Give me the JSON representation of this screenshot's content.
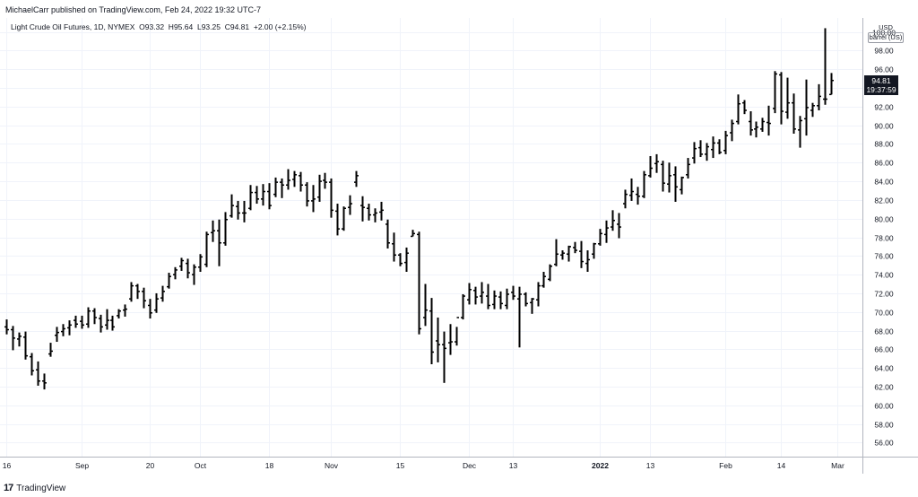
{
  "header": {
    "published": "MichaelCarr published on TradingView.com, Feb 24, 2022 19:32 UTC-7"
  },
  "legend": {
    "symbol": "Light Crude Oil Futures, 1D, NYMEX",
    "o_label": "O",
    "o_value": "93.32",
    "h_label": "H",
    "h_value": "95.64",
    "l_label": "L",
    "l_value": "93.25",
    "c_label": "C",
    "c_value": "94.81",
    "change": "+2.00 (+2.15%)"
  },
  "price_axis": {
    "currency": "USD",
    "unit": "barrel (US)"
  },
  "last_price": {
    "value": "94.81",
    "countdown": "19:37:59",
    "price": 94.81
  },
  "footer": {
    "brand": "TradingView",
    "logo_glyph": "17"
  },
  "chart_data": {
    "type": "ohlc",
    "ylim": [
      54.5,
      101.5
    ],
    "yticks": [
      56,
      58,
      60,
      62,
      64,
      66,
      68,
      70,
      72,
      74,
      76,
      78,
      80,
      82,
      84,
      86,
      88,
      90,
      92,
      94,
      96,
      98,
      100
    ],
    "ytick_labels": [
      "56.00",
      "58.00",
      "60.00",
      "62.00",
      "64.00",
      "66.00",
      "68.00",
      "70.00",
      "72.00",
      "74.00",
      "76.00",
      "78.00",
      "80.00",
      "82.00",
      "84.00",
      "86.00",
      "88.00",
      "90.00",
      "92.00",
      "94.00",
      "96.00",
      "98.00",
      "100.00"
    ],
    "xticks": [
      {
        "label": "16",
        "index": 0
      },
      {
        "label": "Sep",
        "index": 12
      },
      {
        "label": "20",
        "index": 23
      },
      {
        "label": "Oct",
        "index": 31
      },
      {
        "label": "18",
        "index": 42
      },
      {
        "label": "Nov",
        "index": 52
      },
      {
        "label": "15",
        "index": 63
      },
      {
        "label": "Dec",
        "index": 74
      },
      {
        "label": "13",
        "index": 81
      },
      {
        "label": "2022",
        "index": 95
      },
      {
        "label": "13",
        "index": 103
      },
      {
        "label": "Feb",
        "index": 115
      },
      {
        "label": "14",
        "index": 124
      },
      {
        "label": "Mar",
        "index": 133
      }
    ],
    "x_domain": [
      -1,
      137
    ],
    "bars": [
      [
        68.4,
        69.2,
        67.6,
        68.1
      ],
      [
        68.1,
        68.5,
        65.9,
        67.2
      ],
      [
        67.1,
        67.8,
        66.3,
        67.4
      ],
      [
        67.3,
        67.9,
        64.9,
        65.3
      ],
      [
        65.2,
        65.6,
        63.2,
        63.7
      ],
      [
        63.8,
        64.7,
        62.1,
        62.6
      ],
      [
        62.6,
        63.4,
        61.7,
        62.4
      ],
      [
        65.5,
        66.7,
        65.2,
        65.8
      ],
      [
        67.5,
        68.4,
        66.8,
        67.8
      ],
      [
        67.9,
        68.7,
        67.4,
        68.2
      ],
      [
        68.3,
        69.1,
        67.5,
        68.6
      ],
      [
        69.1,
        69.6,
        68.3,
        68.7
      ],
      [
        69.0,
        69.6,
        68.2,
        68.6
      ],
      [
        68.7,
        70.5,
        68.3,
        70.1
      ],
      [
        70.1,
        70.4,
        68.7,
        69.4
      ],
      [
        69.3,
        69.7,
        67.8,
        68.4
      ],
      [
        68.6,
        70.3,
        68.1,
        69.1
      ],
      [
        69.1,
        69.6,
        68.0,
        68.4
      ],
      [
        69.6,
        70.3,
        69.3,
        70.1
      ],
      [
        70.2,
        70.8,
        69.5,
        70.3
      ],
      [
        71.4,
        73.2,
        71.1,
        72.8
      ],
      [
        72.8,
        73.0,
        71.4,
        72.2
      ],
      [
        72.2,
        72.6,
        70.4,
        71.2
      ],
      [
        70.7,
        71.4,
        69.3,
        69.9
      ],
      [
        70.2,
        72.0,
        69.9,
        71.4
      ],
      [
        71.5,
        72.8,
        71.1,
        72.2
      ],
      [
        72.7,
        74.2,
        72.5,
        73.8
      ],
      [
        74.0,
        74.8,
        73.5,
        74.5
      ],
      [
        74.9,
        75.8,
        74.4,
        75.5
      ],
      [
        75.2,
        75.7,
        73.6,
        74.2
      ],
      [
        74.0,
        75.1,
        72.9,
        74.8
      ],
      [
        74.8,
        76.2,
        74.3,
        75.9
      ],
      [
        75.1,
        78.6,
        74.8,
        78.3
      ],
      [
        78.5,
        79.8,
        77.5,
        78.7
      ],
      [
        78.7,
        79.9,
        74.9,
        77.4
      ],
      [
        77.4,
        80.7,
        77.1,
        79.9
      ],
      [
        80.3,
        82.6,
        80.1,
        81.4
      ],
      [
        81.3,
        81.9,
        79.9,
        80.6
      ],
      [
        80.6,
        81.9,
        79.6,
        80.6
      ],
      [
        81.1,
        83.6,
        80.9,
        82.8
      ],
      [
        82.8,
        83.5,
        81.6,
        82.1
      ],
      [
        82.1,
        83.7,
        81.4,
        82.9
      ],
      [
        82.9,
        83.8,
        81.0,
        81.4
      ],
      [
        82.6,
        84.4,
        82.3,
        83.9
      ],
      [
        83.9,
        84.3,
        82.2,
        83.6
      ],
      [
        83.6,
        85.3,
        83.1,
        84.1
      ],
      [
        84.2,
        85.1,
        83.4,
        84.7
      ],
      [
        84.6,
        85.0,
        82.9,
        83.6
      ],
      [
        83.6,
        83.9,
        81.3,
        81.9
      ],
      [
        81.9,
        83.6,
        80.7,
        82.1
      ],
      [
        82.3,
        84.7,
        81.8,
        84.0
      ],
      [
        84.1,
        84.9,
        83.2,
        83.9
      ],
      [
        83.9,
        84.3,
        80.1,
        80.9
      ],
      [
        80.8,
        81.6,
        78.2,
        78.9
      ],
      [
        78.9,
        81.3,
        78.7,
        81.1
      ],
      [
        81.2,
        82.5,
        80.4,
        81.6
      ],
      [
        83.9,
        85.1,
        83.4,
        84.6
      ],
      [
        81.4,
        82.4,
        79.7,
        81.2
      ],
      [
        81.1,
        81.6,
        79.8,
        80.4
      ],
      [
        80.4,
        81.1,
        79.6,
        80.6
      ],
      [
        80.7,
        81.8,
        79.8,
        80.9
      ],
      [
        79.4,
        79.9,
        76.8,
        77.4
      ],
      [
        77.3,
        78.5,
        75.4,
        76.1
      ],
      [
        76.1,
        76.3,
        74.9,
        75.2
      ],
      [
        75.3,
        76.9,
        74.3,
        76.3
      ],
      [
        78.1,
        78.8,
        78.1,
        78.4
      ],
      [
        78.3,
        78.6,
        67.6,
        68.2
      ],
      [
        69.4,
        73.0,
        68.5,
        70.2
      ],
      [
        70.1,
        71.5,
        64.4,
        65.7
      ],
      [
        66.9,
        69.4,
        64.6,
        66.5
      ],
      [
        66.5,
        67.9,
        62.4,
        66.1
      ],
      [
        66.7,
        68.7,
        65.4,
        66.8
      ],
      [
        66.8,
        68.4,
        66.4,
        69.4
      ],
      [
        69.4,
        71.9,
        69.2,
        71.7
      ],
      [
        71.3,
        73.1,
        70.8,
        72.4
      ],
      [
        72.3,
        72.7,
        70.8,
        71.6
      ],
      [
        71.7,
        73.2,
        70.9,
        72.1
      ],
      [
        71.7,
        73.0,
        70.3,
        70.7
      ],
      [
        70.8,
        72.3,
        70.3,
        71.7
      ],
      [
        71.6,
        72.2,
        70.3,
        70.9
      ],
      [
        70.7,
        72.5,
        70.3,
        71.9
      ],
      [
        72.1,
        72.8,
        71.3,
        71.7
      ],
      [
        71.4,
        72.7,
        66.2,
        71.9
      ],
      [
        71.9,
        72.1,
        70.6,
        70.9
      ],
      [
        71.0,
        71.5,
        69.8,
        71.4
      ],
      [
        71.3,
        73.2,
        70.6,
        72.8
      ],
      [
        72.8,
        74.3,
        72.6,
        73.8
      ],
      [
        73.5,
        75.1,
        73.3,
        74.9
      ],
      [
        75.1,
        77.8,
        74.9,
        76.2
      ],
      [
        76.1,
        76.6,
        75.6,
        76.3
      ],
      [
        76.2,
        77.1,
        75.4,
        77.0
      ],
      [
        76.9,
        77.5,
        76.3,
        76.6
      ],
      [
        76.5,
        77.6,
        74.7,
        75.4
      ],
      [
        75.2,
        76.6,
        74.3,
        75.6
      ],
      [
        76.2,
        77.4,
        75.7,
        77.3
      ],
      [
        77.3,
        78.9,
        77.1,
        78.4
      ],
      [
        78.3,
        79.8,
        77.4,
        79.0
      ],
      [
        79.1,
        80.9,
        78.7,
        79.8
      ],
      [
        79.4,
        80.6,
        77.9,
        79.1
      ],
      [
        81.6,
        83.1,
        81.1,
        82.6
      ],
      [
        82.5,
        84.3,
        81.9,
        82.9
      ],
      [
        82.6,
        83.4,
        81.5,
        82.4
      ],
      [
        82.4,
        85.1,
        82.2,
        84.7
      ],
      [
        84.6,
        86.7,
        84.4,
        85.4
      ],
      [
        85.9,
        86.9,
        84.9,
        86.1
      ],
      [
        85.8,
        86.2,
        82.9,
        83.8
      ],
      [
        83.7,
        86.0,
        82.8,
        84.6
      ],
      [
        84.7,
        85.6,
        81.8,
        83.4
      ],
      [
        83.1,
        84.5,
        82.6,
        84.4
      ],
      [
        84.7,
        86.5,
        84.3,
        85.8
      ],
      [
        86.5,
        88.2,
        85.9,
        87.5
      ],
      [
        87.6,
        88.4,
        86.6,
        86.9
      ],
      [
        86.9,
        88.1,
        86.2,
        87.7
      ],
      [
        87.4,
        88.8,
        86.5,
        88.1
      ],
      [
        88.1,
        88.5,
        86.9,
        87.1
      ],
      [
        87.3,
        89.4,
        86.9,
        88.9
      ],
      [
        89.2,
        90.6,
        88.3,
        90.2
      ],
      [
        90.4,
        93.3,
        90.1,
        92.3
      ],
      [
        92.4,
        92.7,
        91.2,
        91.6
      ],
      [
        90.4,
        91.5,
        88.9,
        89.5
      ],
      [
        89.6,
        90.4,
        88.7,
        89.8
      ],
      [
        89.6,
        90.8,
        89.3,
        90.4
      ],
      [
        90.3,
        92.1,
        88.9,
        90.2
      ],
      [
        91.8,
        95.8,
        91.3,
        95.5
      ],
      [
        95.4,
        95.7,
        90.1,
        91.5
      ],
      [
        91.4,
        95.1,
        90.7,
        92.4
      ],
      [
        92.4,
        93.4,
        89.1,
        89.6
      ],
      [
        89.5,
        91.0,
        87.6,
        90.5
      ],
      [
        90.7,
        94.9,
        88.9,
        91.9
      ],
      [
        91.6,
        92.4,
        90.9,
        92.1
      ],
      [
        92.1,
        94.4,
        91.6,
        93.1
      ],
      [
        92.8,
        100.4,
        92.2,
        92.8
      ],
      [
        93.3,
        95.6,
        93.3,
        94.8
      ]
    ]
  }
}
